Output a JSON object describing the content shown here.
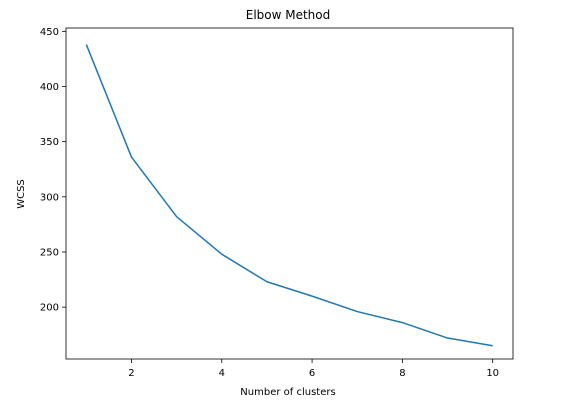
{
  "chart_data": {
    "type": "line",
    "title": "Elbow Method",
    "xlabel": "Number of clusters",
    "ylabel": "WCSS",
    "grid": false,
    "x": [
      1,
      2,
      3,
      4,
      5,
      6,
      7,
      8,
      9,
      10
    ],
    "series": [
      {
        "values": [
          438,
          336,
          282,
          248,
          223,
          210,
          196,
          186,
          172,
          165
        ],
        "color": "#1f77b4"
      }
    ],
    "xlim": [
      0.55,
      10.45
    ],
    "ylim": [
      153,
      453
    ],
    "xticks": [
      2,
      4,
      6,
      8,
      10
    ],
    "yticks": [
      200,
      250,
      300,
      350,
      400,
      450
    ]
  }
}
